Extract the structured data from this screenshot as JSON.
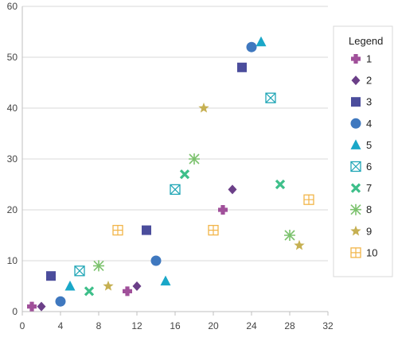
{
  "chart_data": {
    "type": "scatter",
    "title": "",
    "xlabel": "",
    "ylabel": "",
    "xlim": [
      0,
      32
    ],
    "ylim": [
      0,
      60
    ],
    "x_ticks": [
      "0",
      "4",
      "8",
      "12",
      "16",
      "20",
      "24",
      "28",
      "32"
    ],
    "y_ticks": [
      "0",
      "10",
      "20",
      "30",
      "40",
      "50",
      "60"
    ],
    "grid": "horizontal",
    "legend": {
      "title": "Legend",
      "position": "right"
    },
    "series": [
      {
        "name": "1",
        "marker": "plus",
        "color": "#a0509a",
        "points": [
          [
            1,
            1
          ],
          [
            11,
            4
          ],
          [
            21,
            20
          ]
        ]
      },
      {
        "name": "2",
        "marker": "diamond",
        "color": "#6b3f88",
        "points": [
          [
            2,
            1
          ],
          [
            12,
            5
          ],
          [
            22,
            24
          ]
        ]
      },
      {
        "name": "3",
        "marker": "square",
        "color": "#4b4d9c",
        "points": [
          [
            3,
            7
          ],
          [
            13,
            16
          ],
          [
            23,
            48
          ]
        ]
      },
      {
        "name": "4",
        "marker": "circle",
        "color": "#3f78bf",
        "points": [
          [
            4,
            2
          ],
          [
            14,
            10
          ],
          [
            24,
            52
          ]
        ]
      },
      {
        "name": "5",
        "marker": "triangle",
        "color": "#1aa7c8",
        "points": [
          [
            5,
            5
          ],
          [
            15,
            6
          ],
          [
            25,
            53
          ]
        ]
      },
      {
        "name": "6",
        "marker": "box-x",
        "color": "#20a6b6",
        "points": [
          [
            6,
            8
          ],
          [
            16,
            24
          ],
          [
            26,
            42
          ]
        ]
      },
      {
        "name": "7",
        "marker": "x",
        "color": "#3ebf8a",
        "points": [
          [
            7,
            4
          ],
          [
            17,
            27
          ],
          [
            27,
            25
          ]
        ]
      },
      {
        "name": "8",
        "marker": "asterisk",
        "color": "#7cc26e",
        "points": [
          [
            8,
            9
          ],
          [
            18,
            30
          ],
          [
            28,
            15
          ]
        ]
      },
      {
        "name": "9",
        "marker": "star",
        "color": "#c6b052",
        "points": [
          [
            9,
            5
          ],
          [
            19,
            40
          ],
          [
            29,
            13
          ]
        ]
      },
      {
        "name": "10",
        "marker": "box-plus",
        "color": "#f2b548",
        "points": [
          [
            10,
            16
          ],
          [
            20,
            16
          ],
          [
            30,
            22
          ]
        ]
      }
    ]
  }
}
